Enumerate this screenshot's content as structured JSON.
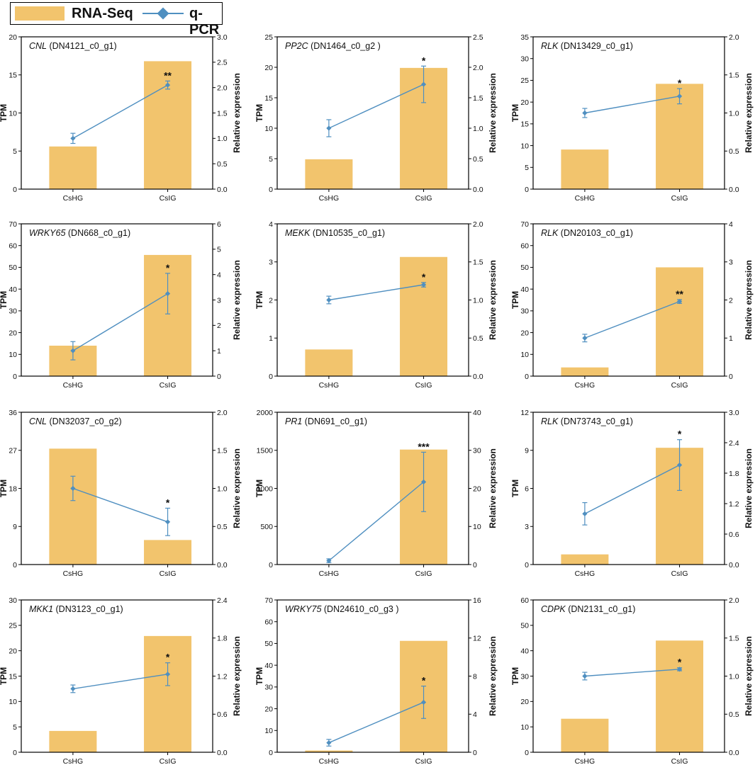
{
  "legend": {
    "bar_label": "RNA-Seq",
    "line_label": "q-PCR"
  },
  "colors": {
    "bar": "#f2c46d",
    "line": "#4f8fc0",
    "axis": "#000000"
  },
  "chart_data": [
    {
      "type": "bar",
      "title_gene": "CNL",
      "title_id": " (DN4121_c0_g1)",
      "categories": [
        "CsHG",
        "CsIG"
      ],
      "ylabel": "TPM",
      "y2label": "Relative expression",
      "ylim": [
        0,
        20
      ],
      "yticks": [
        "0",
        "5",
        "10",
        "15",
        "20"
      ],
      "y2lim": [
        0,
        3.0
      ],
      "y2ticks": [
        "0.0",
        "0.5",
        "1.0",
        "1.5",
        "2.0",
        "2.5",
        "3.0"
      ],
      "series": [
        {
          "name": "RNA-Seq",
          "axis": "left",
          "values": [
            5.6,
            16.8
          ]
        },
        {
          "name": "q-PCR",
          "axis": "right",
          "values": [
            1.0,
            2.05
          ],
          "errors": [
            0.1,
            0.08
          ]
        }
      ],
      "annotations": [
        "",
        "**"
      ]
    },
    {
      "type": "bar",
      "title_gene": "PP2C",
      "title_id": " (DN1464_c0_g2 )",
      "categories": [
        "CsHG",
        "CsIG"
      ],
      "ylabel": "TPM",
      "y2label": "Relative expression",
      "ylim": [
        0,
        25
      ],
      "yticks": [
        "0",
        "5",
        "10",
        "15",
        "20",
        "25"
      ],
      "y2lim": [
        0,
        2.5
      ],
      "y2ticks": [
        "0.0",
        "0.5",
        "1.0",
        "1.5",
        "2.0",
        "2.5"
      ],
      "series": [
        {
          "name": "RNA-Seq",
          "axis": "left",
          "values": [
            4.9,
            19.9
          ]
        },
        {
          "name": "q-PCR",
          "axis": "right",
          "values": [
            1.0,
            1.72
          ],
          "errors": [
            0.14,
            0.3
          ]
        }
      ],
      "annotations": [
        "",
        "*"
      ]
    },
    {
      "type": "bar",
      "title_gene": "RLK",
      "title_id": " (DN13429_c0_g1)",
      "categories": [
        "CsHG",
        "CsIG"
      ],
      "ylabel": "TPM",
      "y2label": "Relative expression",
      "ylim": [
        0,
        35
      ],
      "yticks": [
        "0",
        "5",
        "10",
        "15",
        "20",
        "25",
        "30",
        "35"
      ],
      "y2lim": [
        0,
        2.0
      ],
      "y2ticks": [
        "0.0",
        "0.5",
        "1.0",
        "1.5",
        "2.0"
      ],
      "series": [
        {
          "name": "RNA-Seq",
          "axis": "left",
          "values": [
            9.1,
            24.2
          ]
        },
        {
          "name": "q-PCR",
          "axis": "right",
          "values": [
            1.0,
            1.22
          ],
          "errors": [
            0.06,
            0.1
          ]
        }
      ],
      "annotations": [
        "",
        "*"
      ]
    },
    {
      "type": "bar",
      "title_gene": "WRKY65",
      "title_id": " (DN668_c0_g1)",
      "categories": [
        "CsHG",
        "CsIG"
      ],
      "ylabel": "TPM",
      "y2label": "Relative expression",
      "ylim": [
        0,
        70
      ],
      "yticks": [
        "0",
        "10",
        "20",
        "30",
        "40",
        "50",
        "60",
        "70"
      ],
      "y2lim": [
        0,
        6
      ],
      "y2ticks": [
        "0",
        "1",
        "2",
        "3",
        "4",
        "5",
        "6"
      ],
      "series": [
        {
          "name": "RNA-Seq",
          "axis": "left",
          "values": [
            14.0,
            55.7
          ]
        },
        {
          "name": "q-PCR",
          "axis": "right",
          "values": [
            1.0,
            3.25
          ],
          "errors": [
            0.36,
            0.8
          ]
        }
      ],
      "annotations": [
        "",
        "*"
      ]
    },
    {
      "type": "bar",
      "title_gene": "MEKK",
      "title_id": " (DN10535_c0_g1)",
      "categories": [
        "CsHG",
        "CsIG"
      ],
      "ylabel": "TPM",
      "y2label": "Relative expression",
      "ylim": [
        0,
        4
      ],
      "yticks": [
        "0",
        "1",
        "2",
        "3",
        "4"
      ],
      "y2lim": [
        0,
        2.0
      ],
      "y2ticks": [
        "0.0",
        "0.5",
        "1.0",
        "1.5",
        "2.0"
      ],
      "series": [
        {
          "name": "RNA-Seq",
          "axis": "left",
          "values": [
            0.7,
            3.13
          ]
        },
        {
          "name": "q-PCR",
          "axis": "right",
          "values": [
            1.0,
            1.2
          ],
          "errors": [
            0.05,
            0.03
          ]
        }
      ],
      "annotations": [
        "",
        "*"
      ]
    },
    {
      "type": "bar",
      "title_gene": "RLK",
      "title_id": " (DN20103_c0_g1)",
      "categories": [
        "CsHG",
        "CsIG"
      ],
      "ylabel": "TPM",
      "y2label": "Relative expression",
      "ylim": [
        0,
        70
      ],
      "yticks": [
        "0",
        "10",
        "20",
        "30",
        "40",
        "50",
        "60",
        "70"
      ],
      "y2lim": [
        0,
        4
      ],
      "y2ticks": [
        "0",
        "1",
        "2",
        "3",
        "4"
      ],
      "series": [
        {
          "name": "RNA-Seq",
          "axis": "left",
          "values": [
            4.0,
            50.0
          ]
        },
        {
          "name": "q-PCR",
          "axis": "right",
          "values": [
            1.0,
            1.96
          ],
          "errors": [
            0.1,
            0.05
          ]
        }
      ],
      "annotations": [
        "",
        "**"
      ]
    },
    {
      "type": "bar",
      "title_gene": "CNL",
      "title_id": " (DN32037_c0_g2)",
      "categories": [
        "CsHG",
        "CsIG"
      ],
      "ylabel": "TPM",
      "y2label": "Relative expression",
      "ylim": [
        0,
        36
      ],
      "yticks": [
        "0",
        "9",
        "18",
        "27",
        "36"
      ],
      "y2lim": [
        0,
        2.0
      ],
      "y2ticks": [
        "0.0",
        "0.5",
        "1.0",
        "1.5",
        "2.0"
      ],
      "series": [
        {
          "name": "RNA-Seq",
          "axis": "left",
          "values": [
            27.4,
            5.8
          ]
        },
        {
          "name": "q-PCR",
          "axis": "right",
          "values": [
            1.0,
            0.56
          ],
          "errors": [
            0.16,
            0.18
          ]
        }
      ],
      "annotations": [
        "",
        "*"
      ]
    },
    {
      "type": "bar",
      "title_gene": "PR1",
      "title_id": " (DN691_c0_g1)",
      "categories": [
        "CsHG",
        "CsIG"
      ],
      "ylabel": "TPM",
      "y2label": "Relative expression",
      "ylim": [
        0,
        2000
      ],
      "yticks": [
        "0",
        "500",
        "1000",
        "1500",
        "2000"
      ],
      "y2lim": [
        0,
        40
      ],
      "y2ticks": [
        "0",
        "10",
        "20",
        "30",
        "40"
      ],
      "series": [
        {
          "name": "RNA-Seq",
          "axis": "left",
          "values": [
            0,
            1510
          ]
        },
        {
          "name": "q-PCR",
          "axis": "right",
          "values": [
            1.0,
            21.7
          ],
          "errors": [
            0.5,
            7.8
          ]
        }
      ],
      "annotations": [
        "",
        "***"
      ]
    },
    {
      "type": "bar",
      "title_gene": "RLK",
      "title_id": " (DN73743_c0_g1)",
      "categories": [
        "CsHG",
        "CsIG"
      ],
      "ylabel": "TPM",
      "y2label": "Relative expression",
      "ylim": [
        0,
        12
      ],
      "yticks": [
        "0",
        "3",
        "6",
        "9",
        "12"
      ],
      "y2lim": [
        0,
        3.0
      ],
      "y2ticks": [
        "0.0",
        "0.6",
        "1.2",
        "1.8",
        "2.4",
        "3.0"
      ],
      "series": [
        {
          "name": "RNA-Seq",
          "axis": "left",
          "values": [
            0.8,
            9.2
          ]
        },
        {
          "name": "q-PCR",
          "axis": "right",
          "values": [
            1.0,
            1.96
          ],
          "errors": [
            0.22,
            0.5
          ]
        }
      ],
      "annotations": [
        "",
        "*"
      ]
    },
    {
      "type": "bar",
      "title_gene": "MKK1",
      "title_id": " (DN3123_c0_g1)",
      "categories": [
        "CsHG",
        "CsIG"
      ],
      "ylabel": "TPM",
      "y2label": "Relative expression",
      "ylim": [
        0,
        30
      ],
      "yticks": [
        "0",
        "5",
        "10",
        "15",
        "20",
        "25",
        "30"
      ],
      "y2lim": [
        0,
        2.4
      ],
      "y2ticks": [
        "0.0",
        "0.6",
        "1.2",
        "1.8",
        "2.4"
      ],
      "series": [
        {
          "name": "RNA-Seq",
          "axis": "left",
          "values": [
            4.2,
            22.9
          ]
        },
        {
          "name": "q-PCR",
          "axis": "right",
          "values": [
            1.0,
            1.23
          ],
          "errors": [
            0.06,
            0.18
          ]
        }
      ],
      "annotations": [
        "",
        "*"
      ]
    },
    {
      "type": "bar",
      "title_gene": "WRKY75",
      "title_id": " (DN24610_c0_g3 )",
      "categories": [
        "CsHG",
        "CsIG"
      ],
      "ylabel": "TPM",
      "y2label": "Relative expression",
      "ylim": [
        0,
        70
      ],
      "yticks": [
        "0",
        "10",
        "20",
        "30",
        "40",
        "50",
        "60",
        "70"
      ],
      "y2lim": [
        0,
        16
      ],
      "y2ticks": [
        "0",
        "4",
        "8",
        "12",
        "16"
      ],
      "series": [
        {
          "name": "RNA-Seq",
          "axis": "left",
          "values": [
            0.8,
            51.2
          ]
        },
        {
          "name": "q-PCR",
          "axis": "right",
          "values": [
            1.0,
            5.25
          ],
          "errors": [
            0.35,
            1.7
          ]
        }
      ],
      "annotations": [
        "",
        "*"
      ]
    },
    {
      "type": "bar",
      "title_gene": "CDPK",
      "title_id": " (DN2131_c0_g1)",
      "categories": [
        "CsHG",
        "CsIG"
      ],
      "ylabel": "TPM",
      "y2label": "Relative expression",
      "ylim": [
        0,
        60
      ],
      "yticks": [
        "0",
        "10",
        "20",
        "30",
        "40",
        "50",
        "60"
      ],
      "y2lim": [
        0,
        2.0
      ],
      "y2ticks": [
        "0.0",
        "0.5",
        "1.0",
        "1.5",
        "2.0"
      ],
      "series": [
        {
          "name": "RNA-Seq",
          "axis": "left",
          "values": [
            13.2,
            44.0
          ]
        },
        {
          "name": "q-PCR",
          "axis": "right",
          "values": [
            1.0,
            1.09
          ],
          "errors": [
            0.05,
            0.02
          ]
        }
      ],
      "annotations": [
        "",
        "*"
      ]
    }
  ]
}
